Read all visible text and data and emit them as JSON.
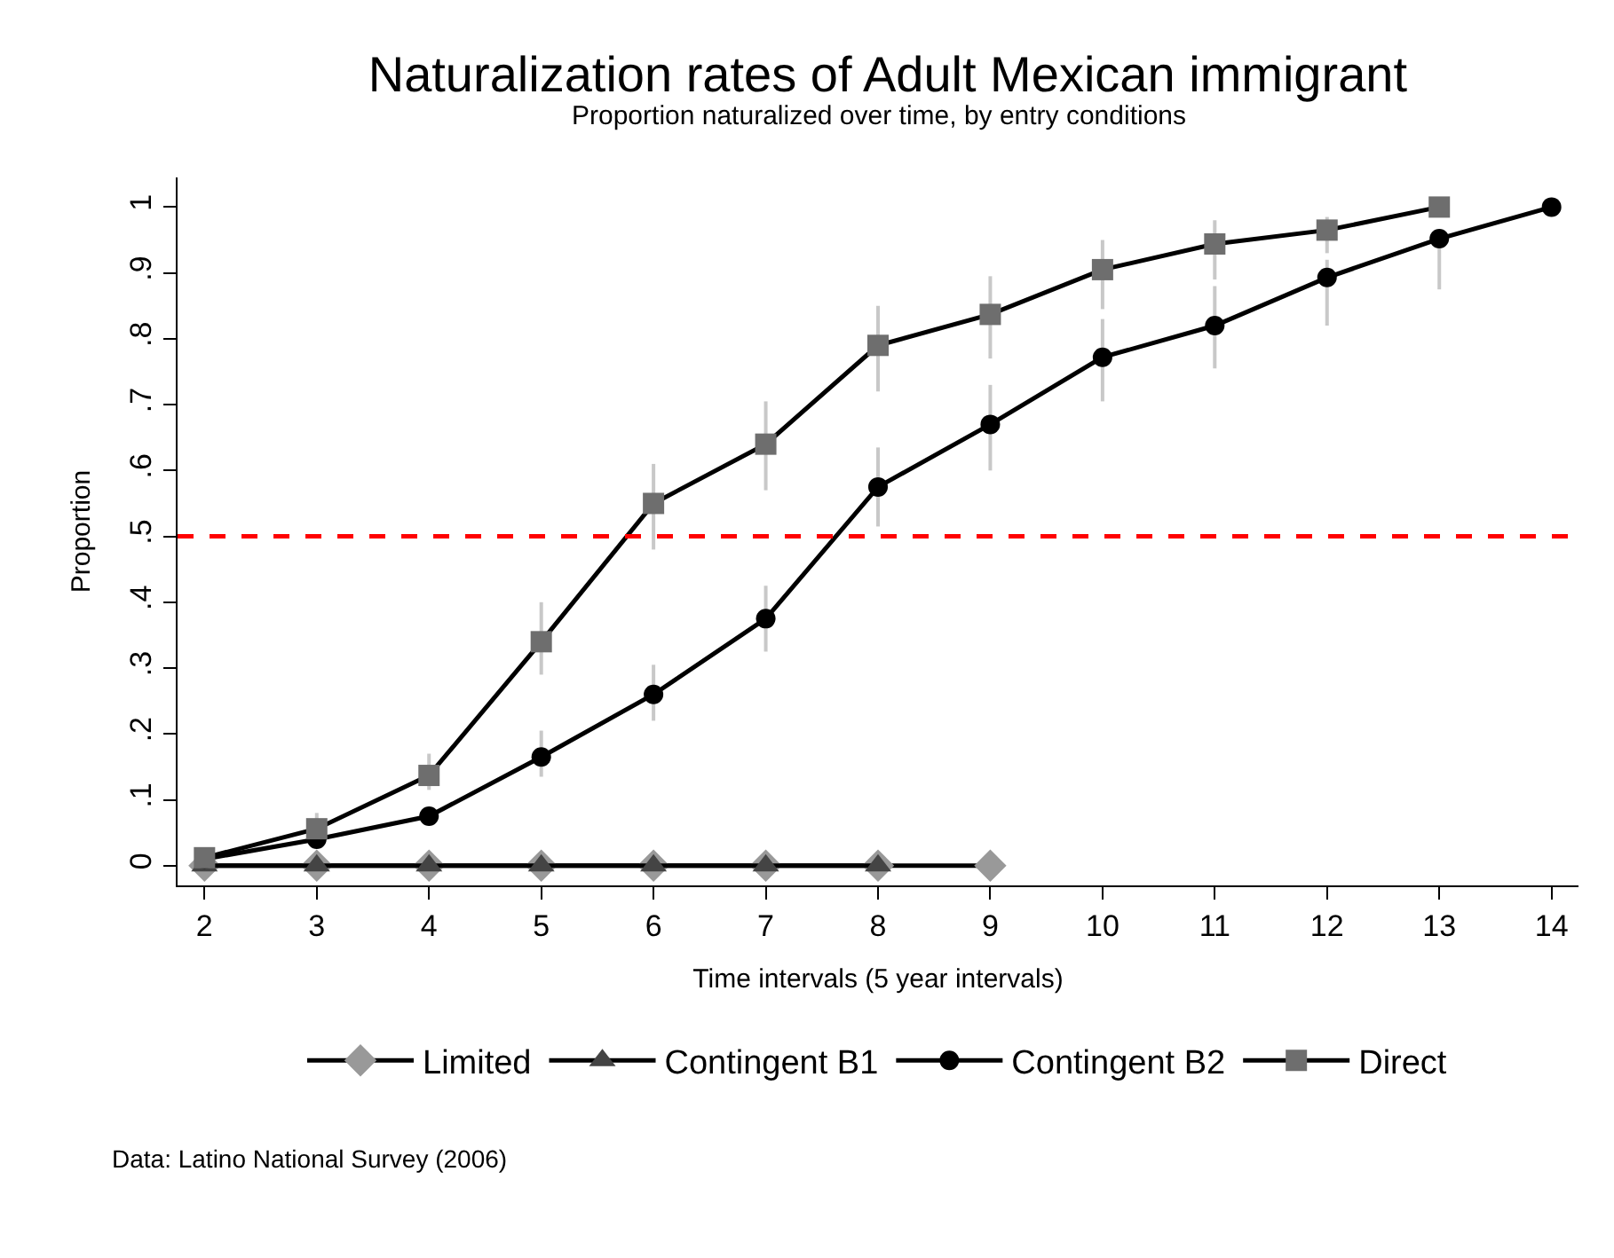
{
  "chart_data": {
    "type": "line",
    "title": "Naturalization rates of Adult Mexican immigrant",
    "subtitle": "Proportion naturalized over time, by entry conditions",
    "xlabel": "Time intervals (5 year intervals)",
    "ylabel": "Proportion",
    "annotations": [
      "Data: Latino National Survey (2006)"
    ],
    "xlim": [
      1.76,
      14.24
    ],
    "xticks": [
      2,
      3,
      4,
      5,
      6,
      7,
      8,
      9,
      10,
      11,
      12,
      13,
      14
    ],
    "ylim": [
      -0.03,
      1.045
    ],
    "yticks": [
      {
        "value": 0,
        "label": "0"
      },
      {
        "value": 0.1,
        "label": ".1"
      },
      {
        "value": 0.2,
        "label": ".2"
      },
      {
        "value": 0.3,
        "label": ".3"
      },
      {
        "value": 0.4,
        "label": ".4"
      },
      {
        "value": 0.5,
        "label": ".5"
      },
      {
        "value": 0.6,
        "label": ".6"
      },
      {
        "value": 0.7,
        "label": ".7"
      },
      {
        "value": 0.8,
        "label": ".8"
      },
      {
        "value": 0.9,
        "label": ".9"
      },
      {
        "value": 1,
        "label": "1"
      }
    ],
    "legend": "bottom",
    "ref_lines": [
      {
        "axis": "y",
        "value": 0.5,
        "color": "#ff0000",
        "line_style": "dashed"
      }
    ],
    "series": [
      {
        "name": "Limited",
        "color": "#999999",
        "marker": "diamond",
        "x": [
          2,
          3,
          4,
          5,
          6,
          7,
          8,
          9
        ],
        "values": [
          0,
          0,
          0,
          0,
          0,
          0,
          0,
          0
        ]
      },
      {
        "name": "Contingent B1",
        "color": "#444444",
        "marker": "triangle",
        "x": [
          2,
          3,
          4,
          5,
          6,
          7,
          8
        ],
        "values": [
          0,
          0,
          0,
          0,
          0,
          0,
          0
        ]
      },
      {
        "name": "Contingent B2",
        "color": "#000000",
        "marker": "circle",
        "x": [
          2,
          3,
          4,
          5,
          6,
          7,
          8,
          9,
          10,
          11,
          12,
          13,
          14
        ],
        "values": [
          0.01,
          0.04,
          0.075,
          0.165,
          0.26,
          0.375,
          0.575,
          0.67,
          0.772,
          0.82,
          0.893,
          0.952,
          1.0
        ],
        "errors": [
          null,
          null,
          null,
          [
            0.135,
            0.205
          ],
          [
            0.22,
            0.305
          ],
          [
            0.325,
            0.425
          ],
          [
            0.515,
            0.635
          ],
          [
            0.6,
            0.73
          ],
          [
            0.705,
            0.83
          ],
          [
            0.755,
            0.88
          ],
          [
            0.82,
            0.92
          ],
          [
            0.875,
            0.94
          ],
          null
        ]
      },
      {
        "name": "Direct",
        "color": "#6e6e6e",
        "marker": "square",
        "x": [
          2,
          3,
          4,
          5,
          6,
          7,
          8,
          9,
          10,
          11,
          12,
          13
        ],
        "values": [
          0.012,
          0.056,
          0.137,
          0.34,
          0.55,
          0.64,
          0.79,
          0.837,
          0.905,
          0.944,
          0.965,
          1.0
        ],
        "errors": [
          null,
          [
            0.04,
            0.08
          ],
          [
            0.115,
            0.17
          ],
          [
            0.29,
            0.4
          ],
          [
            0.48,
            0.61
          ],
          [
            0.57,
            0.705
          ],
          [
            0.72,
            0.85
          ],
          [
            0.77,
            0.895
          ],
          [
            0.845,
            0.95
          ],
          [
            0.89,
            0.98
          ],
          [
            0.93,
            0.985
          ],
          null
        ]
      }
    ]
  }
}
